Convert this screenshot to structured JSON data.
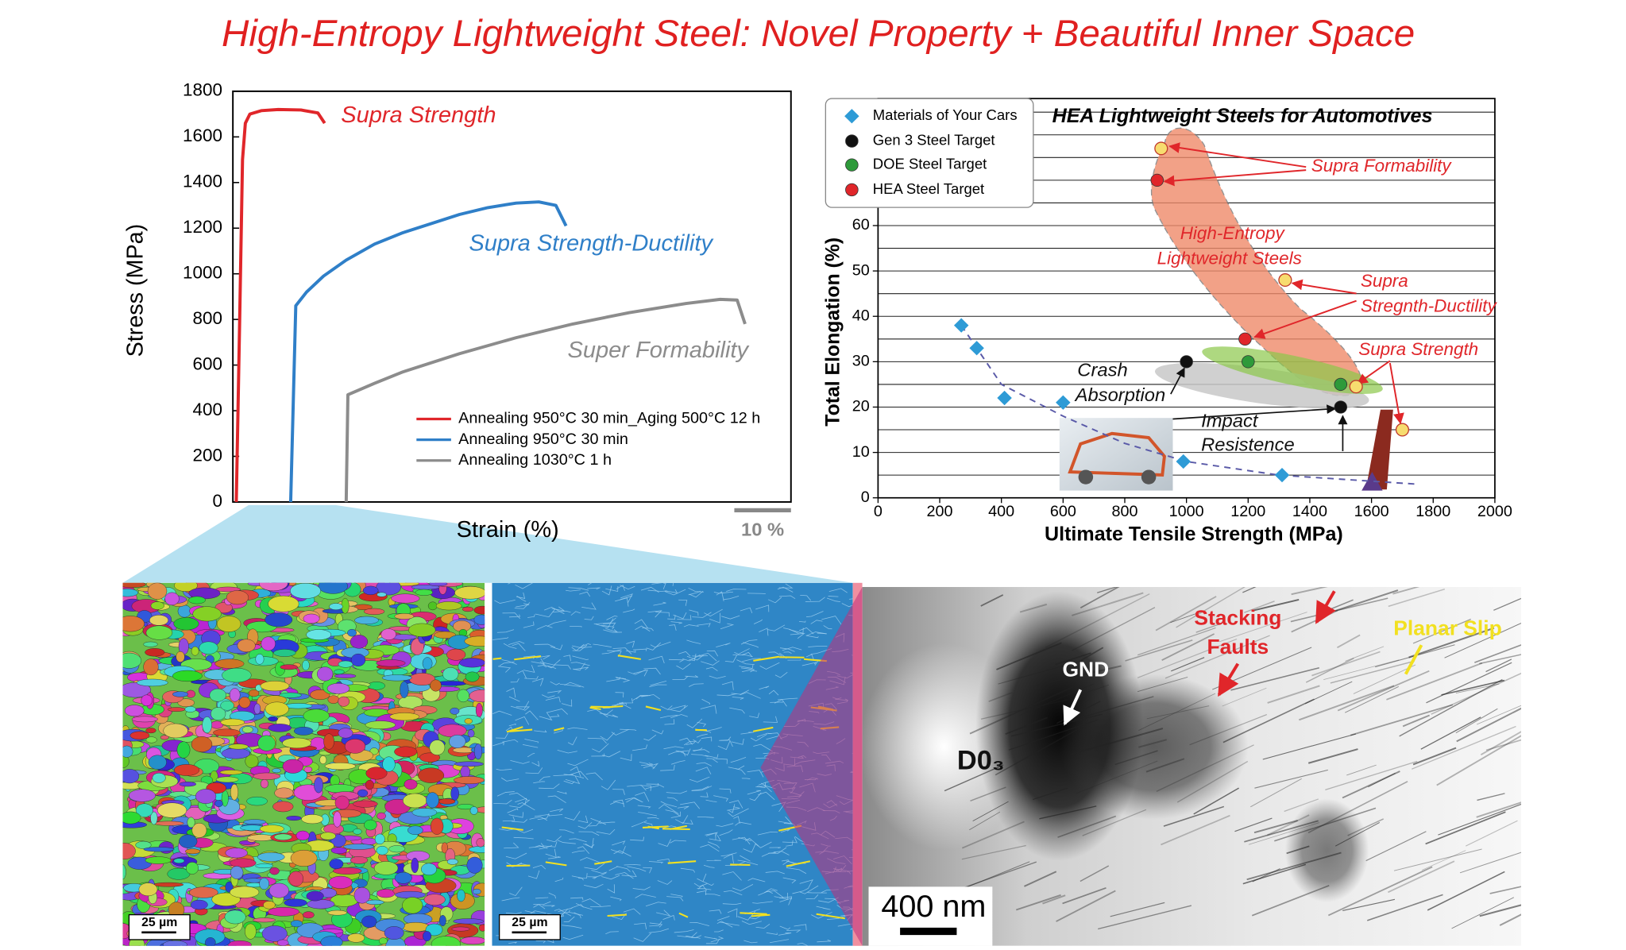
{
  "title": "High-Entropy Lightweight Steel: Novel Property + Beautiful Inner Space",
  "chart_data": [
    {
      "type": "line",
      "x_label": "Strain (%)",
      "y_label": "Stress (MPa)",
      "xlim": [
        0,
        98.5
      ],
      "ylim": [
        0,
        1800
      ],
      "yticks": [
        0,
        200,
        400,
        600,
        800,
        1000,
        1200,
        1400,
        1600,
        1800
      ],
      "scale_bar": {
        "value": 10,
        "label": "10 %"
      },
      "legend": "lower right",
      "series": [
        {
          "name": "Annealing 950°C 30 min_Aging 500°C 12 h",
          "color": "#e0262a",
          "x": [
            0.6,
            1.2,
            1.7,
            2.2,
            3,
            5,
            8,
            12,
            15,
            16.2
          ],
          "values": [
            0,
            800,
            1500,
            1660,
            1700,
            1715,
            1720,
            1718,
            1705,
            1660
          ]
        },
        {
          "name": "Annealing 950°C 30 min",
          "color": "#2f7fc8",
          "x": [
            10.2,
            11.1,
            13,
            16,
            20,
            25,
            30,
            35,
            40,
            45,
            50,
            54,
            57,
            58.8
          ],
          "values": [
            0,
            860,
            920,
            990,
            1060,
            1130,
            1180,
            1220,
            1260,
            1290,
            1310,
            1315,
            1300,
            1210
          ]
        },
        {
          "name": "Annealing 1030°C 1 h",
          "color": "#8c8c8c",
          "x": [
            20,
            20.3,
            25,
            30,
            40,
            50,
            60,
            70,
            80,
            86,
            89,
            90.4
          ],
          "values": [
            0,
            470,
            520,
            570,
            650,
            720,
            780,
            830,
            870,
            888,
            885,
            780
          ]
        }
      ],
      "annotations": [
        "Supra Strength",
        "Supra Strength-Ductility",
        "Super Formability"
      ]
    },
    {
      "type": "scatter",
      "title": "HEA Lightweight Steels for Automotives",
      "x_label": "Ultimate Tensile Strength (MPa)",
      "y_label": "Total Elongation (%)",
      "xlim": [
        0,
        2000
      ],
      "ylim": [
        0,
        88
      ],
      "xticks": [
        0,
        200,
        400,
        600,
        800,
        1000,
        1200,
        1400,
        1600,
        1800,
        2000
      ],
      "yticks": [
        0,
        10,
        20,
        30,
        40,
        50,
        60
      ],
      "ygrid": [
        5,
        10,
        15,
        20,
        25,
        30,
        35,
        40,
        45,
        50,
        55,
        60,
        65,
        70,
        75,
        80,
        85
      ],
      "legend": "upper left",
      "series": [
        {
          "name": "Materials of Your Cars",
          "color": "#2e9bd6",
          "marker": "diamond",
          "x": [
            270,
            320,
            410,
            600,
            990,
            1310
          ],
          "values": [
            38,
            33,
            22,
            21,
            8,
            5
          ]
        },
        {
          "name": "Gen 3 Steel Target",
          "color": "#111111",
          "marker": "circle",
          "x": [
            1000,
            1500
          ],
          "values": [
            30,
            20
          ]
        },
        {
          "name": "DOE Steel Target",
          "color": "#2e9a3a",
          "marker": "circle",
          "x": [
            1200,
            1500
          ],
          "values": [
            30,
            25
          ]
        },
        {
          "name": "HEA Steel Target",
          "color": "#e0262a",
          "marker": "circle",
          "x": [
            905,
            1190
          ],
          "values": [
            70,
            35
          ]
        }
      ],
      "highlights": {
        "color": "#f7dc6f",
        "x": [
          918,
          1320,
          1550,
          1700
        ],
        "values": [
          77,
          48,
          24.5,
          15
        ]
      },
      "trend": {
        "color": "#5a5aa8",
        "x": [
          270,
          400,
          600,
          800,
          1000,
          1300,
          1750
        ],
        "values": [
          38,
          25,
          18,
          12,
          8,
          5,
          3
        ]
      },
      "annotations": [
        "Supra Formability",
        "High-Entropy",
        "Lightweight Steels",
        "Supra",
        "Stregnth-Ductility",
        "Supra Strength",
        "Crash",
        "Absorption",
        "Impact",
        "Resistence"
      ]
    }
  ],
  "micrographs": {
    "ebsd_scale": "25 µm",
    "kam_scale": "25 µm",
    "tem_scale": "400 nm",
    "labels": [
      "GND",
      "D0₃",
      "Stacking",
      "Faults",
      "Planar Slip"
    ]
  }
}
